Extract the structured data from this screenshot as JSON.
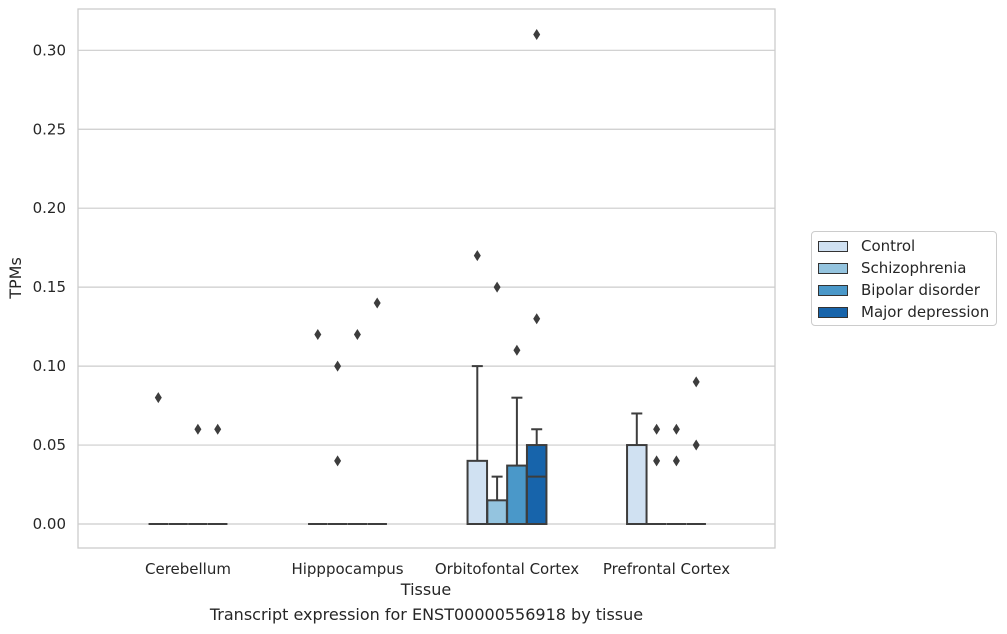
{
  "chart_data": {
    "type": "box",
    "title": "Transcript expression for ENST00000556918 by tissue",
    "xlabel": "Tissue",
    "ylabel": "TPMs",
    "ylim": [
      -0.015,
      0.326
    ],
    "yticks": [
      "0.00",
      "0.05",
      "0.10",
      "0.15",
      "0.20",
      "0.25",
      "0.30"
    ],
    "grid": true,
    "legend_position": "right",
    "categories": [
      "Cerebellum",
      "Hipppocampus",
      "Orbitofontal Cortex",
      "Prefrontal Cortex"
    ],
    "series": [
      {
        "name": "Control",
        "color": "#d0e1f2",
        "boxes": [
          {
            "q1": 0,
            "median": 0,
            "q3": 0,
            "whisker_low": 0,
            "whisker_high": 0,
            "outliers": [
              0.08
            ]
          },
          {
            "q1": 0,
            "median": 0,
            "q3": 0,
            "whisker_low": 0,
            "whisker_high": 0,
            "outliers": [
              0.12
            ]
          },
          {
            "q1": 0,
            "median": 0,
            "q3": 0.04,
            "whisker_low": 0,
            "whisker_high": 0.1,
            "outliers": [
              0.17
            ]
          },
          {
            "q1": 0,
            "median": 0,
            "q3": 0.05,
            "whisker_low": 0,
            "whisker_high": 0.07,
            "outliers": []
          }
        ]
      },
      {
        "name": "Schizophrenia",
        "color": "#94c4df",
        "boxes": [
          {
            "q1": 0,
            "median": 0,
            "q3": 0,
            "whisker_low": 0,
            "whisker_high": 0,
            "outliers": []
          },
          {
            "q1": 0,
            "median": 0,
            "q3": 0,
            "whisker_low": 0,
            "whisker_high": 0,
            "outliers": [
              0.1,
              0.04
            ]
          },
          {
            "q1": 0,
            "median": 0,
            "q3": 0.015,
            "whisker_low": 0,
            "whisker_high": 0.03,
            "outliers": [
              0.15
            ]
          },
          {
            "q1": 0,
            "median": 0,
            "q3": 0,
            "whisker_low": 0,
            "whisker_high": 0,
            "outliers": [
              0.06,
              0.04
            ]
          }
        ]
      },
      {
        "name": "Bipolar disorder",
        "color": "#4a98c9",
        "boxes": [
          {
            "q1": 0,
            "median": 0,
            "q3": 0,
            "whisker_low": 0,
            "whisker_high": 0,
            "outliers": [
              0.06
            ]
          },
          {
            "q1": 0,
            "median": 0,
            "q3": 0,
            "whisker_low": 0,
            "whisker_high": 0,
            "outliers": [
              0.12
            ]
          },
          {
            "q1": 0,
            "median": 0,
            "q3": 0.037,
            "whisker_low": 0,
            "whisker_high": 0.08,
            "outliers": [
              0.11
            ]
          },
          {
            "q1": 0,
            "median": 0,
            "q3": 0,
            "whisker_low": 0,
            "whisker_high": 0,
            "outliers": [
              0.06,
              0.04
            ]
          }
        ]
      },
      {
        "name": "Major depression",
        "color": "#1764ab",
        "boxes": [
          {
            "q1": 0,
            "median": 0,
            "q3": 0,
            "whisker_low": 0,
            "whisker_high": 0,
            "outliers": [
              0.06
            ]
          },
          {
            "q1": 0,
            "median": 0,
            "q3": 0,
            "whisker_low": 0,
            "whisker_high": 0,
            "outliers": [
              0.14
            ]
          },
          {
            "q1": 0,
            "median": 0.03,
            "q3": 0.05,
            "whisker_low": 0,
            "whisker_high": 0.06,
            "outliers": [
              0.31,
              0.13
            ]
          },
          {
            "q1": 0,
            "median": 0,
            "q3": 0,
            "whisker_low": 0,
            "whisker_high": 0,
            "outliers": [
              0.09,
              0.05
            ]
          }
        ]
      }
    ]
  }
}
